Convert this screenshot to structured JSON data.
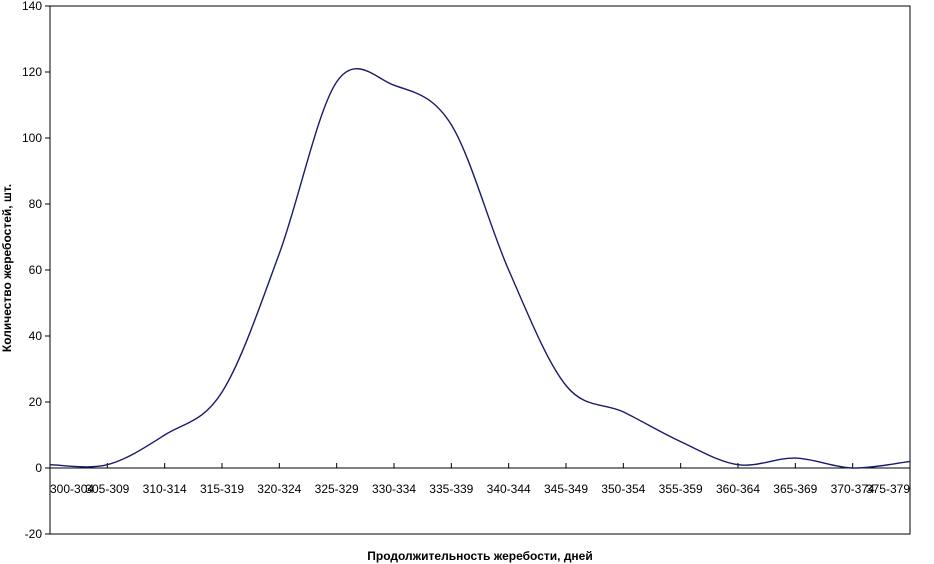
{
  "chart_data": {
    "type": "line",
    "smoothed": true,
    "xlabel": "Продолжительность жеребости, дней",
    "ylabel": "Количество жеребостей, шт.",
    "ylim": [
      -20,
      140
    ],
    "yticks": [
      -20,
      0,
      20,
      40,
      60,
      80,
      100,
      120,
      140
    ],
    "grid": false,
    "legend": "none",
    "categories": [
      "300-304",
      "305-309",
      "310-314",
      "315-319",
      "320-324",
      "325-329",
      "330-334",
      "335-339",
      "340-344",
      "345-349",
      "350-354",
      "355-359",
      "360-364",
      "365-369",
      "370-374",
      "375-379"
    ],
    "series": [
      {
        "color": "#1a1a6e",
        "values": [
          1,
          1,
          10,
          23,
          65,
          117,
          116,
          104,
          60,
          25,
          17,
          8,
          1,
          3,
          0,
          2
        ]
      }
    ]
  }
}
